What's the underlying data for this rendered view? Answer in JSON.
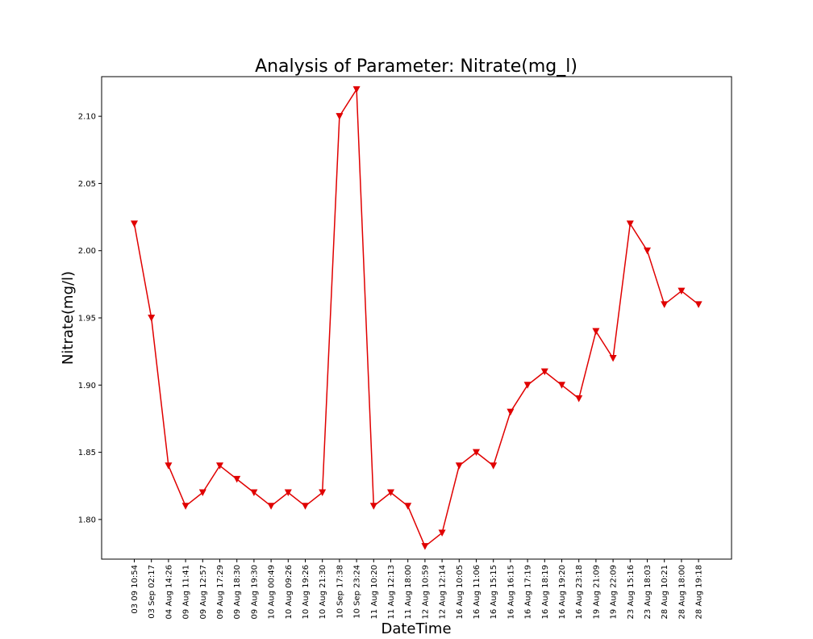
{
  "chart_data": {
    "type": "line",
    "title": "Analysis of Parameter: Nitrate(mg_l)",
    "xlabel": "DateTime",
    "ylabel": "Nitrate(mg/l)",
    "categories": [
      "03 09 10:54",
      "03 Sep 02:17",
      "04 Aug 14:26",
      "09 Aug 11:41",
      "09 Aug 12:57",
      "09 Aug 17:29",
      "09 Aug 18:30",
      "09 Aug 19:30",
      "10 Aug 00:49",
      "10 Aug 09:26",
      "10 Aug 19:26",
      "10 Aug 21:30",
      "10 Sep 17:38",
      "10 Sep 23:24",
      "11 Aug 10:20",
      "11 Aug 12:13",
      "11 Aug 18:00",
      "12 Aug 10:59",
      "12 Aug 12:14",
      "16 Aug 10:05",
      "16 Aug 11:06",
      "16 Aug 15:15",
      "16 Aug 16:15",
      "16 Aug 17:19",
      "16 Aug 18:19",
      "16 Aug 19:20",
      "16 Aug 23:18",
      "19 Aug 21:09",
      "19 Aug 22:09",
      "23 Aug 15:16",
      "23 Aug 18:03",
      "28 Aug 10:21",
      "28 Aug 18:00",
      "28 Aug 19:18"
    ],
    "series": [
      {
        "values": [
          2.02,
          1.95,
          1.84,
          1.81,
          1.82,
          1.84,
          1.83,
          1.82,
          1.81,
          1.82,
          1.81,
          1.82,
          2.1,
          2.12,
          1.81,
          1.82,
          1.81,
          1.78,
          1.79,
          1.84,
          1.85,
          1.84,
          1.88,
          1.9,
          1.91,
          1.9,
          1.89,
          1.94,
          1.92,
          2.02,
          2.0,
          1.96,
          1.97,
          1.96
        ],
        "color": "#e00000",
        "marker": "triangle-down"
      }
    ],
    "yticks": [
      "1.80",
      "1.85",
      "1.90",
      "1.95",
      "2.00",
      "2.05",
      "2.10"
    ],
    "ylim": [
      1.7705,
      2.1295
    ],
    "grid": false
  }
}
